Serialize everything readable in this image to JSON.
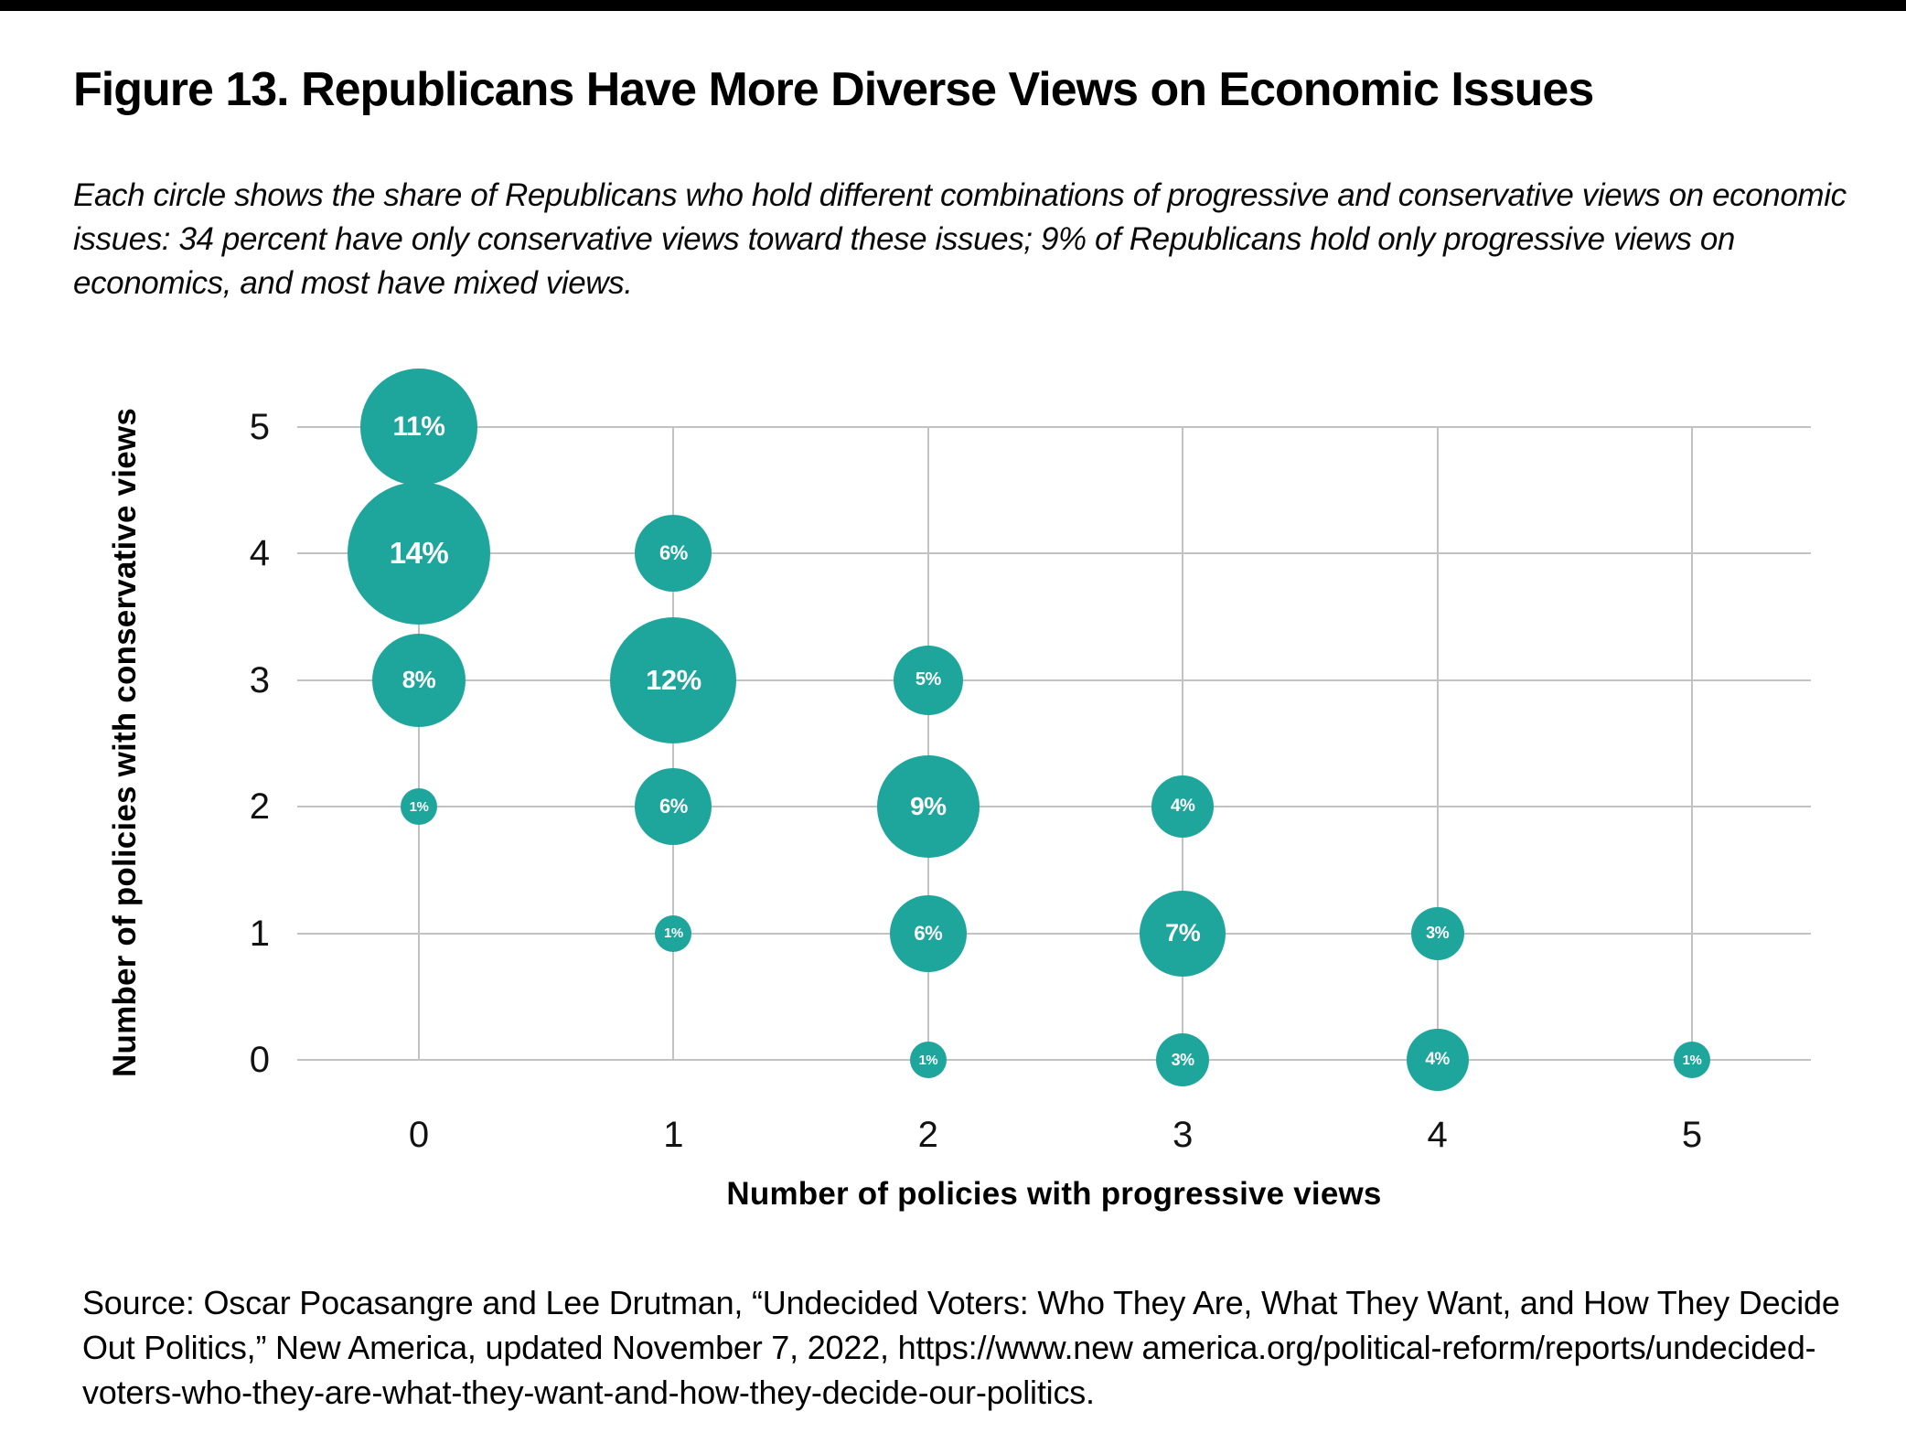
{
  "page": {
    "background": "#ffffff",
    "top_rule_color": "#000000"
  },
  "title": "Figure 13. Republicans Have More Diverse Views on Economic Issues",
  "subtitle_lines": [
    "Each circle shows the share of Republicans who hold different combinations of progressive and conservative views on economic",
    "issues: 34 percent have only conservative views toward these issues; 9% of Republicans hold only progressive views on",
    "economics, and most have mixed views."
  ],
  "chart_data": {
    "type": "scatter",
    "subtype": "bubble",
    "title": "",
    "xlabel": "Number of policies with progressive views",
    "ylabel": "Number of policies with conservative views",
    "x_ticks": [
      0,
      1,
      2,
      3,
      4,
      5
    ],
    "y_ticks": [
      0,
      1,
      2,
      3,
      4,
      5
    ],
    "xlim": [
      -0.48,
      5.47
    ],
    "ylim": [
      -0.05,
      5.45
    ],
    "grid": true,
    "legend": false,
    "bubble_color": "#1EA59C",
    "bubble_label_color": "#ffffff",
    "gridline_color": "#c2c2c2",
    "size_encoding": "share of Republicans (percent)",
    "points": [
      {
        "x": 0,
        "y": 5,
        "value": 11,
        "label": "11%"
      },
      {
        "x": 0,
        "y": 4,
        "value": 14,
        "label": "14%"
      },
      {
        "x": 0,
        "y": 3,
        "value": 8,
        "label": "8%"
      },
      {
        "x": 0,
        "y": 2,
        "value": 1,
        "label": "1%"
      },
      {
        "x": 1,
        "y": 4,
        "value": 6,
        "label": "6%"
      },
      {
        "x": 1,
        "y": 3,
        "value": 12,
        "label": "12%"
      },
      {
        "x": 1,
        "y": 2,
        "value": 6,
        "label": "6%"
      },
      {
        "x": 1,
        "y": 1,
        "value": 1,
        "label": "1%"
      },
      {
        "x": 2,
        "y": 3,
        "value": 5,
        "label": "5%"
      },
      {
        "x": 2,
        "y": 2,
        "value": 9,
        "label": "9%"
      },
      {
        "x": 2,
        "y": 1,
        "value": 6,
        "label": "6%"
      },
      {
        "x": 2,
        "y": 0,
        "value": 1,
        "label": "1%"
      },
      {
        "x": 3,
        "y": 2,
        "value": 4,
        "label": "4%"
      },
      {
        "x": 3,
        "y": 1,
        "value": 7,
        "label": "7%"
      },
      {
        "x": 3,
        "y": 0,
        "value": 3,
        "label": "3%"
      },
      {
        "x": 4,
        "y": 1,
        "value": 3,
        "label": "3%"
      },
      {
        "x": 4,
        "y": 0,
        "value": 4,
        "label": "4%"
      },
      {
        "x": 5,
        "y": 0,
        "value": 1,
        "label": "1%"
      }
    ]
  },
  "source_lines": [
    "Source: Oscar Pocasangre and Lee Drutman, “Undecided Voters: Who They Are, What They Want, and How They Decide",
    "Out Politics,” New America, updated November 7, 2022, https://www.new america.org/political-reform/reports/undecided-",
    "voters-who-they-are-what-they-want-and-how-they-decide-our-politics."
  ]
}
